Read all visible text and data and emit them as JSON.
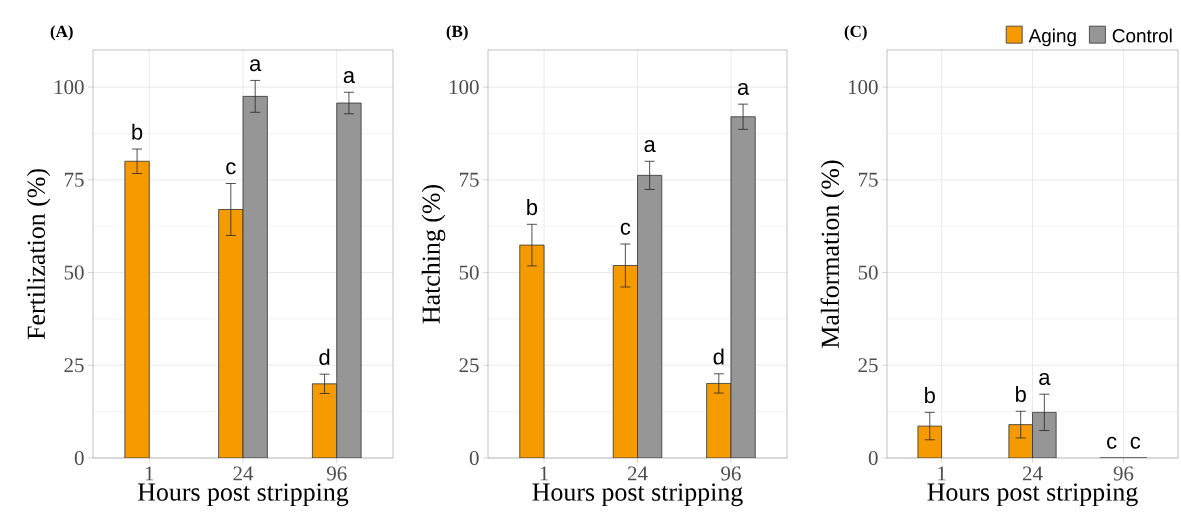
{
  "chart_data": [
    {
      "type": "bar",
      "title": "(A)",
      "xlabel": "Hours post stripping",
      "ylabel": "Fertilization (%)",
      "categories": [
        "1",
        "24",
        "96"
      ],
      "series": [
        {
          "color": "#f59b00",
          "values": [
            80.0,
            67.0,
            20.0
          ],
          "errors": [
            3.3,
            7.0,
            2.6
          ]
        },
        {
          "color": "#969696",
          "values": [
            null,
            97.5,
            95.7
          ],
          "errors": [
            null,
            4.3,
            2.9
          ]
        }
      ],
      "ylim": [
        0,
        110
      ],
      "yticks": [
        0,
        25,
        50,
        75,
        100
      ],
      "grid": true,
      "annotations": [
        {
          "text": "b",
          "x": "1",
          "y": 80.0
        },
        {
          "text": "c",
          "x": "24",
          "y": 67.0
        },
        {
          "text": "a",
          "x": "24",
          "y": 97.5
        },
        {
          "text": "d",
          "x": "96",
          "y": 20.0
        },
        {
          "text": "a",
          "x": "96",
          "y": 95.7
        }
      ]
    },
    {
      "type": "bar",
      "title": "(B)",
      "xlabel": "Hours post stripping",
      "ylabel": "Hatching (%)",
      "categories": [
        "1",
        "24",
        "96"
      ],
      "series": [
        {
          "color": "#f59b00",
          "values": [
            57.4,
            51.9,
            20.1
          ],
          "errors": [
            5.6,
            5.8,
            2.6
          ]
        },
        {
          "color": "#969696",
          "values": [
            null,
            76.2,
            92.0
          ],
          "errors": [
            null,
            3.8,
            3.4
          ]
        }
      ],
      "ylim": [
        0,
        110
      ],
      "yticks": [
        0,
        25,
        50,
        75,
        100
      ],
      "grid": true,
      "annotations": [
        {
          "text": "b",
          "x": "1",
          "y": 57.4
        },
        {
          "text": "c",
          "x": "24",
          "y": 51.9
        },
        {
          "text": "a",
          "x": "24",
          "y": 76.2
        },
        {
          "text": "d",
          "x": "96",
          "y": 20.1
        },
        {
          "text": "a",
          "x": "96",
          "y": 92.0
        }
      ]
    },
    {
      "type": "bar",
      "title": "(C)",
      "xlabel": "Hours post stripping",
      "ylabel": "Malformation (%)",
      "categories": [
        "1",
        "24",
        "96"
      ],
      "series": [
        {
          "name": "Aging",
          "color": "#f59b00",
          "values": [
            8.6,
            9.0,
            0
          ],
          "errors": [
            3.7,
            3.6,
            null
          ]
        },
        {
          "name": "Control",
          "color": "#969696",
          "values": [
            null,
            12.3,
            0
          ],
          "errors": [
            null,
            4.9,
            null
          ]
        }
      ],
      "ylim": [
        0,
        110
      ],
      "yticks": [
        0,
        25,
        50,
        75,
        100
      ],
      "grid": true,
      "legend": "top right",
      "annotations": [
        {
          "text": "b",
          "x": "1",
          "y": 8.6
        },
        {
          "text": "b",
          "x": "24",
          "y": 9.0
        },
        {
          "text": "a",
          "x": "24",
          "y": 12.3
        },
        {
          "text": "c",
          "x": "96",
          "y": 0
        },
        {
          "text": "c",
          "x": "96",
          "y": 0
        }
      ]
    }
  ]
}
